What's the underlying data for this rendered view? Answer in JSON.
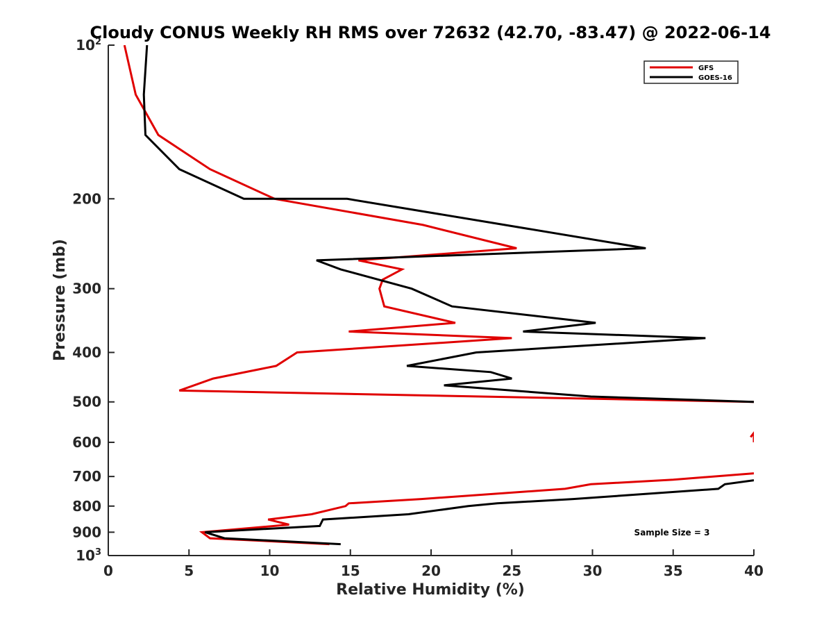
{
  "chart_data": {
    "type": "line",
    "title": "Cloudy CONUS Weekly RH RMS over 72632 (42.70, -83.47) @ 2022-06-14",
    "xlabel": "Relative Humidity (%)",
    "ylabel": "Pressure (mb)",
    "xlim": [
      0,
      40
    ],
    "ylim": [
      100,
      1000
    ],
    "y_scale": "log",
    "y_reversed": true,
    "grid": false,
    "legend_position": "top-right",
    "annotation": "Sample Size = 3",
    "x_ticks": [
      "0",
      "5",
      "10",
      "15",
      "20",
      "25",
      "30",
      "35",
      "40"
    ],
    "y_ticks": [
      {
        "value": 100,
        "base": "10",
        "exp": "2"
      },
      {
        "value": 200,
        "label": "200"
      },
      {
        "value": 300,
        "label": "300"
      },
      {
        "value": 400,
        "label": "400"
      },
      {
        "value": 500,
        "label": "500"
      },
      {
        "value": 600,
        "label": "600"
      },
      {
        "value": 700,
        "label": "700"
      },
      {
        "value": 800,
        "label": "800"
      },
      {
        "value": 900,
        "label": "900"
      },
      {
        "value": 1000,
        "base": "10",
        "exp": "3"
      }
    ],
    "series": [
      {
        "name": "GFS",
        "color": "#e00000",
        "segments": [
          [
            [
              1.0,
              100
            ],
            [
              1.7,
              125
            ],
            [
              3.1,
              150
            ],
            [
              6.3,
              175
            ],
            [
              10.3,
              200
            ],
            [
              19.5,
              225
            ],
            [
              25.3,
              250
            ],
            [
              15.5,
              264
            ],
            [
              18.2,
              275
            ],
            [
              17.0,
              288
            ],
            [
              16.8,
              300
            ],
            [
              17.1,
              325
            ],
            [
              21.5,
              350
            ],
            [
              14.9,
              364
            ],
            [
              25.0,
              375
            ],
            [
              11.7,
              400
            ],
            [
              10.4,
              425
            ],
            [
              6.5,
              450
            ],
            [
              4.4,
              475
            ],
            [
              40,
              500
            ]
          ],
          [
            [
              39.8,
              586
            ],
            [
              40,
              575
            ],
            [
              40,
              600
            ]
          ],
          [
            [
              40,
              690
            ],
            [
              35.0,
              710
            ],
            [
              29.9,
              725
            ],
            [
              28.3,
              740
            ],
            [
              19.4,
              775
            ],
            [
              14.9,
              790
            ],
            [
              14.7,
              800
            ],
            [
              12.6,
              830
            ],
            [
              9.9,
              850
            ],
            [
              11.2,
              870
            ],
            [
              5.8,
              900
            ],
            [
              6.3,
              925
            ],
            [
              13.7,
              950
            ]
          ]
        ]
      },
      {
        "name": "GOES-16",
        "color": "#000000",
        "segments": [
          [
            [
              2.4,
              100
            ],
            [
              2.2,
              125
            ],
            [
              2.3,
              150
            ],
            [
              4.4,
              175
            ],
            [
              8.4,
              200
            ],
            [
              14.8,
              200
            ],
            [
              33.3,
              250
            ],
            [
              12.9,
              264
            ],
            [
              14.4,
              275
            ],
            [
              18.8,
              300
            ],
            [
              21.3,
              325
            ],
            [
              30.2,
              350
            ],
            [
              25.7,
              364
            ],
            [
              37.0,
              375
            ],
            [
              22.8,
              400
            ],
            [
              18.5,
              425
            ],
            [
              23.7,
              437
            ],
            [
              25.0,
              450
            ],
            [
              20.8,
              464
            ],
            [
              29.9,
              488
            ],
            [
              40,
              500
            ]
          ],
          [
            [
              40,
              712
            ],
            [
              38.2,
              725
            ],
            [
              37.8,
              740
            ],
            [
              28.8,
              775
            ],
            [
              24.1,
              790
            ],
            [
              22.3,
              800
            ],
            [
              18.6,
              830
            ],
            [
              13.3,
              850
            ],
            [
              13.1,
              875
            ],
            [
              6.0,
              900
            ],
            [
              7.2,
              925
            ],
            [
              14.4,
              950
            ]
          ]
        ]
      }
    ]
  }
}
